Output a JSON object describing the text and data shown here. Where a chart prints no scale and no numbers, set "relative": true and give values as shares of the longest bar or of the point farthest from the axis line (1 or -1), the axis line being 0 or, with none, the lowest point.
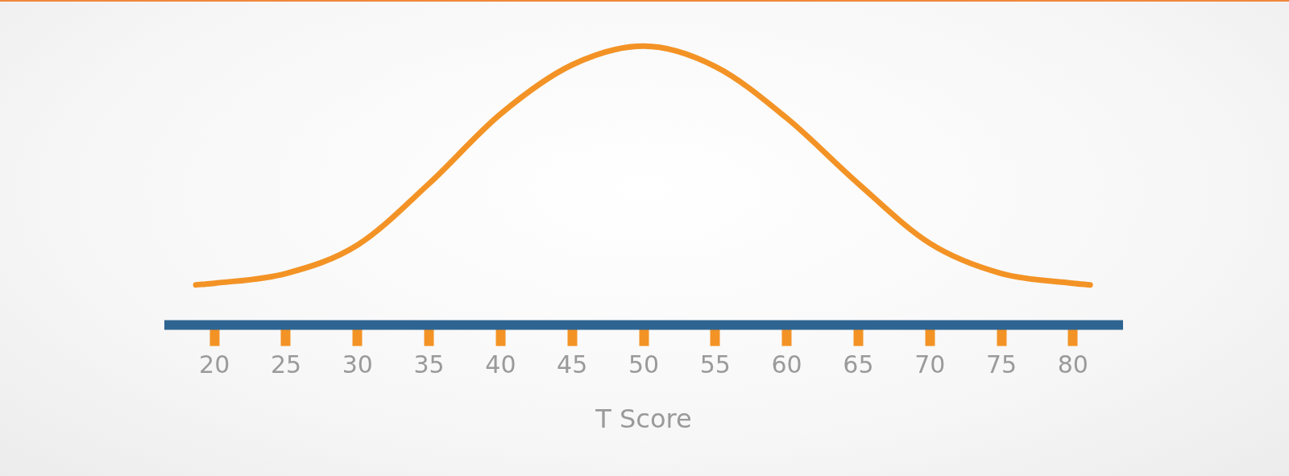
{
  "chart_data": {
    "type": "line",
    "xlabel": "T Score",
    "x": [
      18.7,
      20,
      25,
      30,
      35,
      40,
      45,
      50,
      55,
      60,
      65,
      70,
      75,
      80,
      81.2
    ],
    "series": [
      {
        "color": "#f39325",
        "values": [
          0.144,
          0.15,
          0.185,
          0.287,
          0.507,
          0.757,
          0.933,
          1,
          0.927,
          0.742,
          0.507,
          0.293,
          0.185,
          0.15,
          0.144
        ]
      }
    ],
    "xlim": [
      16.5,
      83.5
    ],
    "xticks": [
      20,
      25,
      30,
      35,
      40,
      45,
      50,
      55,
      60,
      65,
      70,
      75,
      80
    ],
    "relative": true,
    "marker": "none",
    "line_style": "solid"
  }
}
